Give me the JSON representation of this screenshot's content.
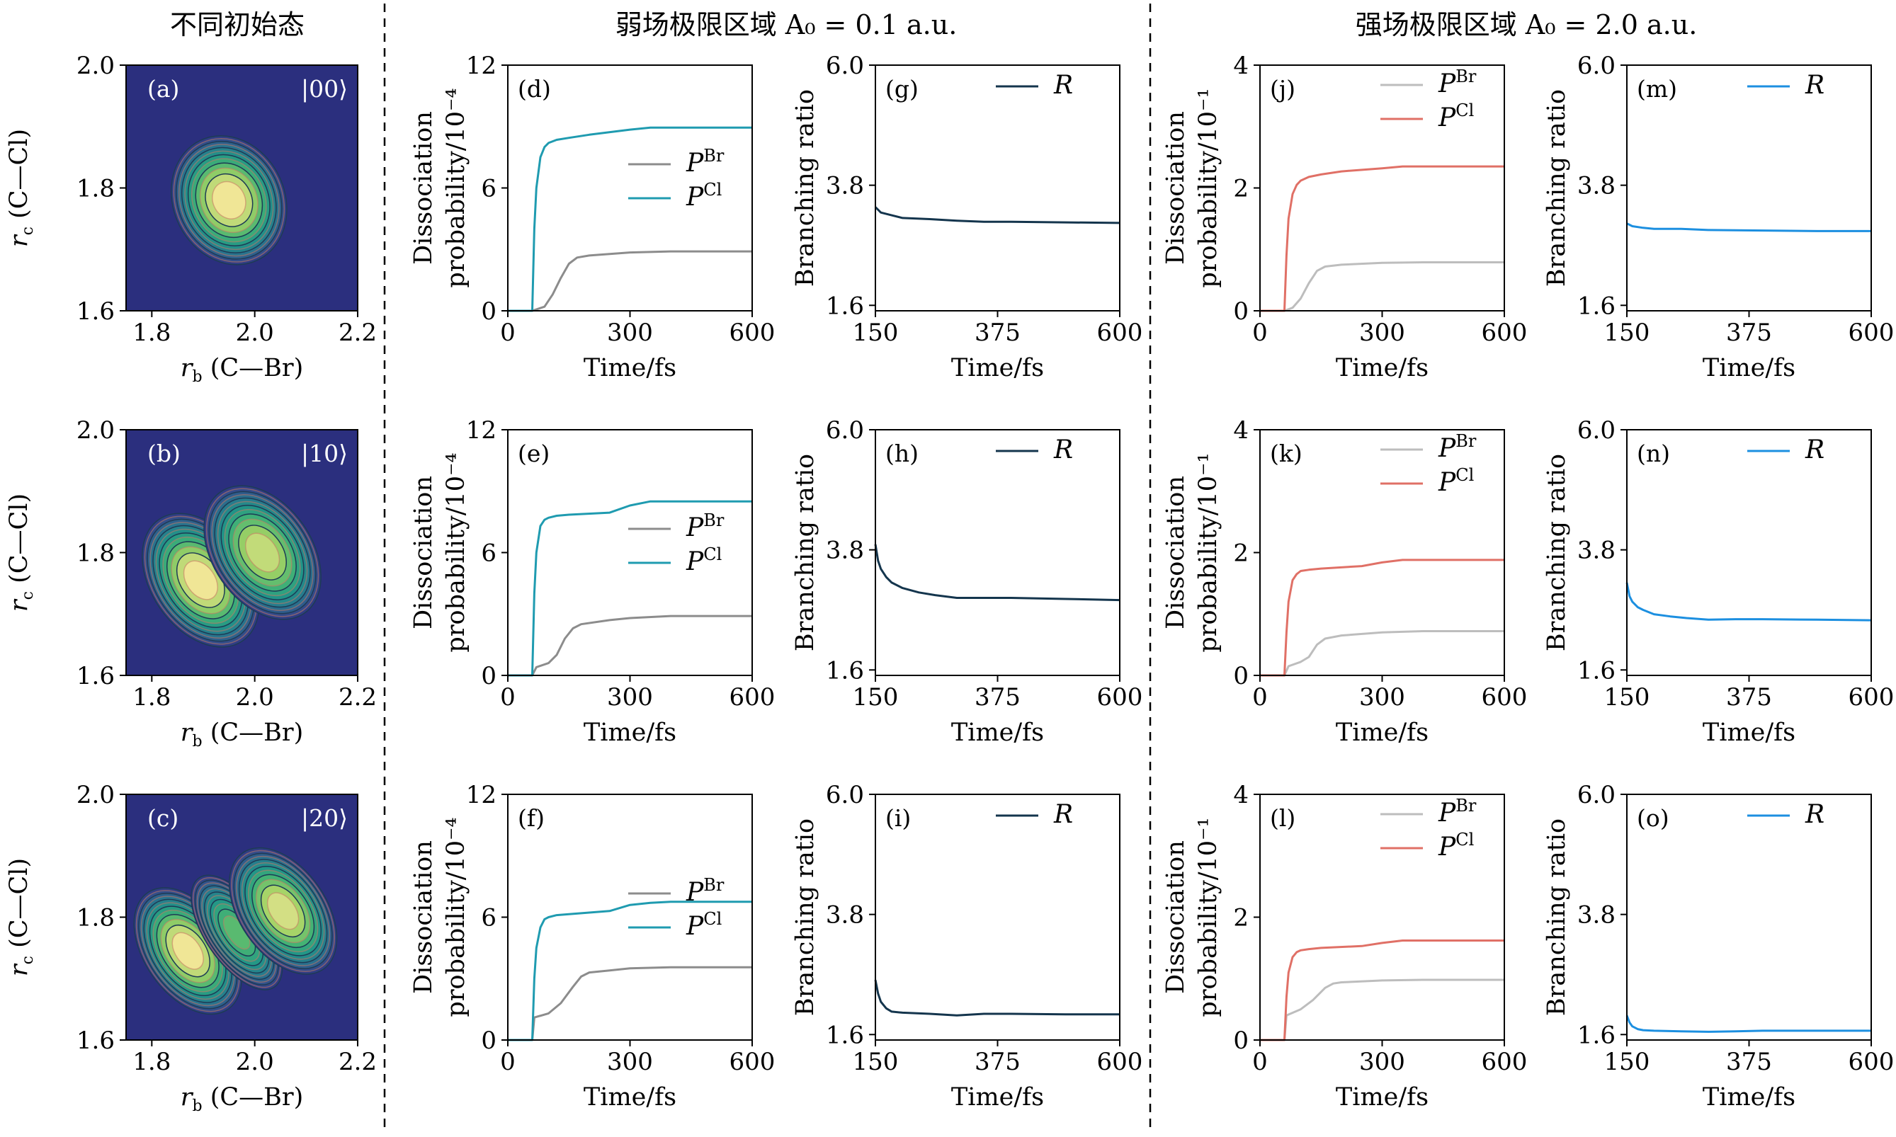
{
  "headers": {
    "col1": "不同初始态",
    "weak": "弱场极限区域 A₀ = 0.1 a.u.",
    "strong": "强场极限区域 A₀ = 2.0 a.u."
  },
  "colors": {
    "p_br_weak": "#8c8c8c",
    "p_cl_weak": "#1f9bb0",
    "r_weak": "#14354d",
    "p_br_strong": "#bdbdbd",
    "p_cl_strong": "#e07066",
    "r_strong": "#1c8fe0",
    "contour_bg": "#2b2f7e"
  },
  "chart_data": [
    {
      "id": "a",
      "type": "heatmap",
      "label": "(a)",
      "state": "|00⟩",
      "xlabel": "r_b (C—Br)",
      "ylabel": "r_c (C—Cl)",
      "xlim": [
        1.75,
        2.2
      ],
      "ylim": [
        1.6,
        2.0
      ],
      "xticks": [
        "1.8",
        "2.0",
        "2.2"
      ],
      "yticks": [
        "1.6",
        "1.8",
        "2.0"
      ],
      "lobes": [
        {
          "x": 1.95,
          "y": 1.78,
          "sx": 0.045,
          "sy": 0.045,
          "rho": -0.35,
          "amp": 1.0
        }
      ]
    },
    {
      "id": "b",
      "type": "heatmap",
      "label": "(b)",
      "state": "|10⟩",
      "xlabel": "r_b (C—Br)",
      "ylabel": "r_c (C—Cl)",
      "xlim": [
        1.75,
        2.2
      ],
      "ylim": [
        1.6,
        2.0
      ],
      "xticks": [
        "1.8",
        "2.0",
        "2.2"
      ],
      "yticks": [
        "1.6",
        "1.8",
        "2.0"
      ],
      "lobes": [
        {
          "x": 1.895,
          "y": 1.755,
          "sx": 0.04,
          "sy": 0.05,
          "rho": -0.55,
          "amp": 1.0
        },
        {
          "x": 2.015,
          "y": 1.8,
          "sx": 0.04,
          "sy": 0.05,
          "rho": -0.55,
          "amp": 0.92
        }
      ]
    },
    {
      "id": "c",
      "type": "heatmap",
      "label": "(c)",
      "state": "|20⟩",
      "xlabel": "r_b (C—Br)",
      "ylabel": "r_c (C—Cl)",
      "xlim": [
        1.75,
        2.2
      ],
      "ylim": [
        1.6,
        2.0
      ],
      "xticks": [
        "1.8",
        "2.0",
        "2.2"
      ],
      "yticks": [
        "1.6",
        "1.8",
        "2.0"
      ],
      "lobes": [
        {
          "x": 1.87,
          "y": 1.745,
          "sx": 0.035,
          "sy": 0.048,
          "rho": -0.55,
          "amp": 1.0
        },
        {
          "x": 1.965,
          "y": 1.775,
          "sx": 0.025,
          "sy": 0.045,
          "rho": -0.55,
          "amp": 0.75
        },
        {
          "x": 2.055,
          "y": 1.81,
          "sx": 0.035,
          "sy": 0.048,
          "rho": -0.55,
          "amp": 0.95
        }
      ]
    },
    {
      "id": "d",
      "type": "line",
      "label": "(d)",
      "xlabel": "Time/fs",
      "ylabel": [
        "Dissociation",
        "probability/10⁻⁴"
      ],
      "xlim": [
        0,
        600
      ],
      "ylim": [
        0,
        12
      ],
      "xticks": [
        0,
        300,
        600
      ],
      "yticks": [
        0,
        6,
        12
      ],
      "legend": [
        {
          "name": "P",
          "sup": "Br",
          "color": "#8c8c8c"
        },
        {
          "name": "P",
          "sup": "Cl",
          "color": "#1f9bb0"
        }
      ],
      "series": [
        {
          "name": "P^Br",
          "color": "#8c8c8c",
          "x": [
            0,
            60,
            90,
            110,
            130,
            150,
            170,
            200,
            300,
            400,
            500,
            600
          ],
          "y": [
            0,
            0,
            0.2,
            0.8,
            1.6,
            2.3,
            2.6,
            2.7,
            2.85,
            2.9,
            2.9,
            2.9
          ]
        },
        {
          "name": "P^Cl",
          "color": "#1f9bb0",
          "x": [
            0,
            60,
            65,
            70,
            80,
            90,
            100,
            120,
            150,
            200,
            300,
            350,
            400,
            600
          ],
          "y": [
            0,
            0,
            4.0,
            6.0,
            7.5,
            8.0,
            8.2,
            8.35,
            8.45,
            8.6,
            8.85,
            8.95,
            8.95,
            8.95
          ]
        }
      ]
    },
    {
      "id": "e",
      "type": "line",
      "label": "(e)",
      "xlabel": "Time/fs",
      "ylabel": [
        "Dissociation",
        "probability/10⁻⁴"
      ],
      "xlim": [
        0,
        600
      ],
      "ylim": [
        0,
        12
      ],
      "xticks": [
        0,
        300,
        600
      ],
      "yticks": [
        0,
        6,
        12
      ],
      "legend": [
        {
          "name": "P",
          "sup": "Br",
          "color": "#8c8c8c"
        },
        {
          "name": "P",
          "sup": "Cl",
          "color": "#1f9bb0"
        }
      ],
      "series": [
        {
          "name": "P^Br",
          "color": "#8c8c8c",
          "x": [
            0,
            60,
            70,
            100,
            120,
            140,
            160,
            180,
            250,
            300,
            400,
            600
          ],
          "y": [
            0,
            0,
            0.4,
            0.6,
            1.0,
            1.8,
            2.3,
            2.5,
            2.7,
            2.8,
            2.9,
            2.9
          ]
        },
        {
          "name": "P^Cl",
          "color": "#1f9bb0",
          "x": [
            0,
            60,
            65,
            70,
            80,
            90,
            100,
            120,
            150,
            250,
            300,
            350,
            400,
            600
          ],
          "y": [
            0,
            0,
            4.0,
            6.0,
            7.3,
            7.6,
            7.7,
            7.8,
            7.85,
            7.95,
            8.3,
            8.5,
            8.5,
            8.5
          ]
        }
      ]
    },
    {
      "id": "f",
      "type": "line",
      "label": "(f)",
      "xlabel": "Time/fs",
      "ylabel": [
        "Dissociation",
        "probability/10⁻⁴"
      ],
      "xlim": [
        0,
        600
      ],
      "ylim": [
        0,
        12
      ],
      "xticks": [
        0,
        300,
        600
      ],
      "yticks": [
        0,
        6,
        12
      ],
      "legend": [
        {
          "name": "P",
          "sup": "Br",
          "color": "#8c8c8c"
        },
        {
          "name": "P",
          "sup": "Cl",
          "color": "#1f9bb0"
        }
      ],
      "series": [
        {
          "name": "P^Br",
          "color": "#8c8c8c",
          "x": [
            0,
            60,
            65,
            100,
            130,
            160,
            180,
            200,
            250,
            300,
            400,
            600
          ],
          "y": [
            0,
            0,
            1.1,
            1.3,
            1.8,
            2.6,
            3.1,
            3.3,
            3.4,
            3.5,
            3.55,
            3.55
          ]
        },
        {
          "name": "P^Cl",
          "color": "#1f9bb0",
          "x": [
            0,
            60,
            65,
            70,
            80,
            90,
            100,
            120,
            150,
            250,
            300,
            350,
            400,
            600
          ],
          "y": [
            0,
            0,
            3.0,
            4.5,
            5.5,
            5.9,
            6.0,
            6.1,
            6.15,
            6.3,
            6.6,
            6.7,
            6.75,
            6.75
          ]
        }
      ]
    },
    {
      "id": "g",
      "type": "line",
      "label": "(g)",
      "xlabel": "Time/fs",
      "ylabel": [
        "Branching ratio"
      ],
      "xlim": [
        150,
        600
      ],
      "ylim": [
        1.5,
        6.0
      ],
      "xticks": [
        150,
        375,
        600
      ],
      "ytickvals": [
        1.6,
        3.8,
        6.0
      ],
      "yticks": [
        "1.6",
        "3.8",
        "6.0"
      ],
      "legend": [
        {
          "name": "R",
          "sup": "",
          "color": "#14354d"
        }
      ],
      "series": [
        {
          "name": "R",
          "color": "#14354d",
          "x": [
            150,
            160,
            180,
            200,
            250,
            300,
            350,
            400,
            500,
            600
          ],
          "y": [
            3.4,
            3.3,
            3.25,
            3.2,
            3.18,
            3.15,
            3.13,
            3.13,
            3.12,
            3.11
          ]
        }
      ]
    },
    {
      "id": "h",
      "type": "line",
      "label": "(h)",
      "xlabel": "Time/fs",
      "ylabel": [
        "Branching ratio"
      ],
      "xlim": [
        150,
        600
      ],
      "ylim": [
        1.5,
        6.0
      ],
      "xticks": [
        150,
        375,
        600
      ],
      "ytickvals": [
        1.6,
        3.8,
        6.0
      ],
      "yticks": [
        "1.6",
        "3.8",
        "6.0"
      ],
      "legend": [
        {
          "name": "R",
          "sup": "",
          "color": "#14354d"
        }
      ],
      "series": [
        {
          "name": "R",
          "color": "#14354d",
          "x": [
            150,
            155,
            160,
            170,
            180,
            200,
            230,
            260,
            300,
            350,
            400,
            500,
            600
          ],
          "y": [
            3.9,
            3.6,
            3.45,
            3.3,
            3.2,
            3.1,
            3.02,
            2.97,
            2.92,
            2.92,
            2.92,
            2.9,
            2.88
          ]
        }
      ]
    },
    {
      "id": "i",
      "type": "line",
      "label": "(i)",
      "xlabel": "Time/fs",
      "ylabel": [
        "Branching ratio"
      ],
      "xlim": [
        150,
        600
      ],
      "ylim": [
        1.5,
        6.0
      ],
      "xticks": [
        150,
        375,
        600
      ],
      "ytickvals": [
        1.6,
        3.8,
        6.0
      ],
      "yticks": [
        "1.6",
        "3.8",
        "6.0"
      ],
      "legend": [
        {
          "name": "R",
          "sup": "",
          "color": "#14354d"
        }
      ],
      "series": [
        {
          "name": "R",
          "color": "#14354d",
          "x": [
            150,
            155,
            160,
            170,
            180,
            200,
            250,
            300,
            350,
            400,
            500,
            600
          ],
          "y": [
            2.6,
            2.35,
            2.2,
            2.08,
            2.02,
            2.0,
            1.98,
            1.95,
            1.98,
            1.98,
            1.97,
            1.97
          ]
        }
      ]
    },
    {
      "id": "j",
      "type": "line",
      "label": "(j)",
      "xlabel": "Time/fs",
      "ylabel": [
        "Dissociation",
        "probability/10⁻¹"
      ],
      "xlim": [
        0,
        600
      ],
      "ylim": [
        0,
        4
      ],
      "xticks": [
        0,
        300,
        600
      ],
      "yticks": [
        0,
        2,
        4
      ],
      "legend": [
        {
          "name": "P",
          "sup": "Br",
          "color": "#bdbdbd"
        },
        {
          "name": "P",
          "sup": "Cl",
          "color": "#e07066"
        }
      ],
      "series": [
        {
          "name": "P^Br",
          "color": "#bdbdbd",
          "x": [
            0,
            60,
            80,
            100,
            120,
            140,
            160,
            200,
            300,
            400,
            600
          ],
          "y": [
            0,
            0,
            0.05,
            0.2,
            0.45,
            0.65,
            0.72,
            0.75,
            0.78,
            0.79,
            0.79
          ]
        },
        {
          "name": "P^Cl",
          "color": "#e07066",
          "x": [
            0,
            60,
            65,
            70,
            80,
            90,
            100,
            120,
            150,
            200,
            300,
            350,
            400,
            600
          ],
          "y": [
            0,
            0,
            0.9,
            1.5,
            1.9,
            2.05,
            2.12,
            2.18,
            2.22,
            2.27,
            2.32,
            2.35,
            2.35,
            2.35
          ]
        }
      ]
    },
    {
      "id": "k",
      "type": "line",
      "label": "(k)",
      "xlabel": "Time/fs",
      "ylabel": [
        "Dissociation",
        "probability/10⁻¹"
      ],
      "xlim": [
        0,
        600
      ],
      "ylim": [
        0,
        4
      ],
      "xticks": [
        0,
        300,
        600
      ],
      "yticks": [
        0,
        2,
        4
      ],
      "legend": [
        {
          "name": "P",
          "sup": "Br",
          "color": "#bdbdbd"
        },
        {
          "name": "P",
          "sup": "Cl",
          "color": "#e07066"
        }
      ],
      "series": [
        {
          "name": "P^Br",
          "color": "#bdbdbd",
          "x": [
            0,
            60,
            70,
            100,
            120,
            140,
            160,
            200,
            300,
            400,
            600
          ],
          "y": [
            0,
            0,
            0.15,
            0.22,
            0.3,
            0.5,
            0.6,
            0.65,
            0.7,
            0.72,
            0.72
          ]
        },
        {
          "name": "P^Cl",
          "color": "#e07066",
          "x": [
            0,
            60,
            65,
            70,
            80,
            90,
            100,
            120,
            150,
            250,
            300,
            350,
            400,
            600
          ],
          "y": [
            0,
            0,
            0.7,
            1.2,
            1.55,
            1.65,
            1.7,
            1.72,
            1.74,
            1.78,
            1.84,
            1.88,
            1.88,
            1.88
          ]
        }
      ]
    },
    {
      "id": "l",
      "type": "line",
      "label": "(l)",
      "xlabel": "Time/fs",
      "ylabel": [
        "Dissociation",
        "probability/10⁻¹"
      ],
      "xlim": [
        0,
        600
      ],
      "ylim": [
        0,
        4
      ],
      "xticks": [
        0,
        300,
        600
      ],
      "yticks": [
        0,
        2,
        4
      ],
      "legend": [
        {
          "name": "P",
          "sup": "Br",
          "color": "#bdbdbd"
        },
        {
          "name": "P",
          "sup": "Cl",
          "color": "#e07066"
        }
      ],
      "series": [
        {
          "name": "P^Br",
          "color": "#bdbdbd",
          "x": [
            0,
            60,
            65,
            100,
            130,
            160,
            180,
            200,
            300,
            400,
            600
          ],
          "y": [
            0,
            0,
            0.4,
            0.5,
            0.65,
            0.85,
            0.92,
            0.94,
            0.97,
            0.98,
            0.98
          ]
        },
        {
          "name": "P^Cl",
          "color": "#e07066",
          "x": [
            0,
            60,
            65,
            70,
            80,
            90,
            100,
            120,
            150,
            250,
            300,
            350,
            400,
            600
          ],
          "y": [
            0,
            0,
            0.7,
            1.1,
            1.35,
            1.43,
            1.46,
            1.48,
            1.5,
            1.53,
            1.58,
            1.62,
            1.62,
            1.62
          ]
        }
      ]
    },
    {
      "id": "m",
      "type": "line",
      "label": "(m)",
      "xlabel": "Time/fs",
      "ylabel": [
        "Branching ratio"
      ],
      "xlim": [
        150,
        600
      ],
      "ylim": [
        1.5,
        6.0
      ],
      "xticks": [
        150,
        375,
        600
      ],
      "ytickvals": [
        1.6,
        3.8,
        6.0
      ],
      "yticks": [
        "1.6",
        "3.8",
        "6.0"
      ],
      "legend": [
        {
          "name": "R",
          "sup": "",
          "color": "#1c8fe0"
        }
      ],
      "series": [
        {
          "name": "R",
          "color": "#1c8fe0",
          "x": [
            150,
            160,
            180,
            200,
            250,
            300,
            400,
            500,
            600
          ],
          "y": [
            3.1,
            3.05,
            3.02,
            3.0,
            3.0,
            2.98,
            2.97,
            2.96,
            2.96
          ]
        }
      ]
    },
    {
      "id": "n",
      "type": "line",
      "label": "(n)",
      "xlabel": "Time/fs",
      "ylabel": [
        "Branching ratio"
      ],
      "xlim": [
        150,
        600
      ],
      "ylim": [
        1.5,
        6.0
      ],
      "xticks": [
        150,
        375,
        600
      ],
      "ytickvals": [
        1.6,
        3.8,
        6.0
      ],
      "yticks": [
        "1.6",
        "3.8",
        "6.0"
      ],
      "legend": [
        {
          "name": "R",
          "sup": "",
          "color": "#1c8fe0"
        }
      ],
      "series": [
        {
          "name": "R",
          "color": "#1c8fe0",
          "x": [
            150,
            155,
            160,
            170,
            180,
            200,
            230,
            260,
            300,
            350,
            400,
            500,
            600
          ],
          "y": [
            3.2,
            2.95,
            2.85,
            2.75,
            2.7,
            2.62,
            2.58,
            2.55,
            2.52,
            2.53,
            2.53,
            2.52,
            2.51
          ]
        }
      ]
    },
    {
      "id": "o",
      "type": "line",
      "label": "(o)",
      "xlabel": "Time/fs",
      "ylabel": [
        "Branching ratio"
      ],
      "xlim": [
        150,
        600
      ],
      "ylim": [
        1.5,
        6.0
      ],
      "xticks": [
        150,
        375,
        600
      ],
      "ytickvals": [
        1.6,
        3.8,
        6.0
      ],
      "yticks": [
        "1.6",
        "3.8",
        "6.0"
      ],
      "legend": [
        {
          "name": "R",
          "sup": "",
          "color": "#1c8fe0"
        }
      ],
      "series": [
        {
          "name": "R",
          "color": "#1c8fe0",
          "x": [
            150,
            155,
            160,
            170,
            180,
            200,
            250,
            300,
            350,
            400,
            500,
            600
          ],
          "y": [
            1.95,
            1.82,
            1.75,
            1.7,
            1.68,
            1.67,
            1.66,
            1.65,
            1.66,
            1.67,
            1.67,
            1.67
          ]
        }
      ]
    }
  ]
}
